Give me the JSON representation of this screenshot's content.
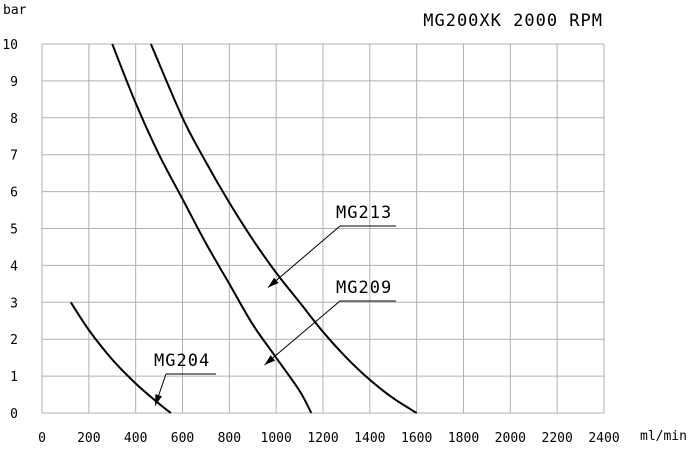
{
  "chart_data": {
    "type": "line",
    "title": "MG200XK   2000 RPM",
    "xlabel": "ml/min",
    "ylabel": "bar",
    "xlim": [
      0,
      2400
    ],
    "ylim": [
      0,
      10
    ],
    "x_ticks": [
      "0",
      "200",
      "400",
      "600",
      "800",
      "1000",
      "1200",
      "1400",
      "1600",
      "1800",
      "2000",
      "2200",
      "2400"
    ],
    "y_ticks": [
      "0",
      "1",
      "2",
      "3",
      "4",
      "5",
      "6",
      "7",
      "8",
      "9",
      "10"
    ],
    "grid": true,
    "legend": "none",
    "series": [
      {
        "name": "MG204",
        "x": [
          123,
          200,
          300,
          400,
          500,
          550
        ],
        "y": [
          3,
          2.25,
          1.45,
          0.8,
          0.25,
          0
        ]
      },
      {
        "name": "MG209",
        "x": [
          300,
          400,
          500,
          600,
          700,
          800,
          900,
          1000,
          1100,
          1150
        ],
        "y": [
          10,
          8.4,
          7.0,
          5.8,
          4.6,
          3.5,
          2.4,
          1.5,
          0.6,
          0
        ]
      },
      {
        "name": "MG213",
        "x": [
          465,
          600,
          700,
          800,
          900,
          1000,
          1100,
          1200,
          1300,
          1400,
          1500,
          1600
        ],
        "y": [
          10,
          8.0,
          6.8,
          5.7,
          4.7,
          3.8,
          3.0,
          2.2,
          1.5,
          0.9,
          0.4,
          0
        ]
      }
    ],
    "annotations": [
      {
        "text": "MG213",
        "at": [
          965,
          3.4
        ]
      },
      {
        "text": "MG209",
        "at": [
          950,
          1.3
        ]
      },
      {
        "text": "MG204",
        "at": [
          483,
          0.2
        ]
      }
    ]
  }
}
